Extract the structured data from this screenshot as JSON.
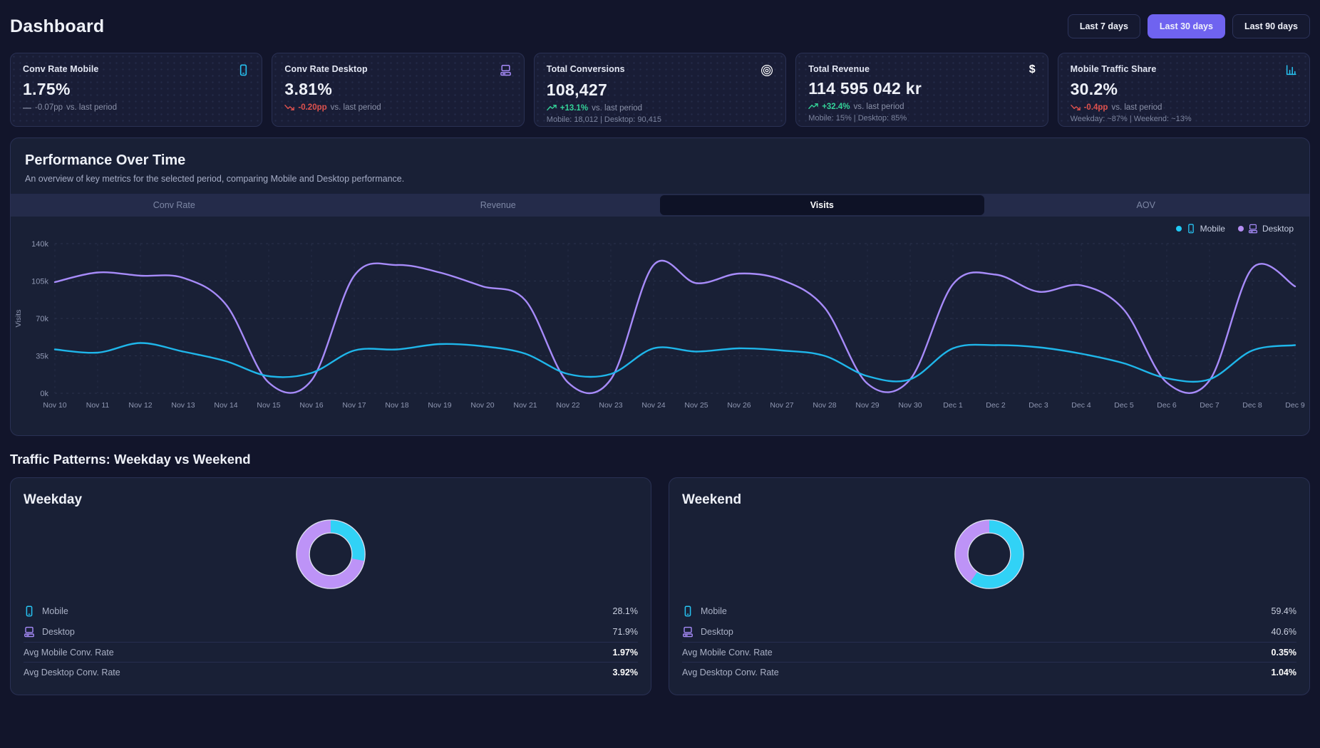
{
  "header": {
    "title": "Dashboard",
    "range_buttons": [
      {
        "label": "Last 7 days",
        "active": false
      },
      {
        "label": "Last 30 days",
        "active": true
      },
      {
        "label": "Last 90 days",
        "active": false
      }
    ]
  },
  "kpis": [
    {
      "label": "Conv Rate Mobile",
      "value": "1.75%",
      "change": "-0.07pp",
      "suffix": "vs. last period",
      "detail": ""
    },
    {
      "label": "Conv Rate Desktop",
      "value": "3.81%",
      "change": "-0.20pp",
      "suffix": "vs. last period",
      "detail": ""
    },
    {
      "label": "Total Conversions",
      "value": "108,427",
      "change": "+13.1%",
      "suffix": "vs. last period",
      "detail": "Mobile: 18,012 | Desktop: 90,415"
    },
    {
      "label": "Total Revenue",
      "value": "114 595 042 kr",
      "change": "+32.4%",
      "suffix": "vs. last period",
      "detail": "Mobile: 15% | Desktop: 85%"
    },
    {
      "label": "Mobile Traffic Share",
      "value": "30.2%",
      "change": "-0.4pp",
      "suffix": "vs. last period",
      "detail": "Weekday: ~87% | Weekend: ~13%"
    }
  ],
  "performance": {
    "title": "Performance Over Time",
    "subtitle": "An overview of key metrics for the selected period, comparing Mobile and Desktop performance.",
    "tabs": [
      {
        "label": "Conv Rate",
        "active": false
      },
      {
        "label": "Revenue",
        "active": false
      },
      {
        "label": "Visits",
        "active": true
      },
      {
        "label": "AOV",
        "active": false
      }
    ],
    "legend": [
      {
        "label": "Mobile"
      },
      {
        "label": "Desktop"
      }
    ]
  },
  "traffic": {
    "title": "Traffic Patterns: Weekday vs Weekend",
    "cards": [
      {
        "title": "Weekday",
        "mobile_label": "Mobile",
        "mobile_value": "28.1%",
        "desktop_label": "Desktop",
        "desktop_value": "71.9%",
        "avg_mobile_label": "Avg Mobile Conv. Rate",
        "avg_mobile_value": "1.97%",
        "avg_desktop_label": "Avg Desktop Conv. Rate",
        "avg_desktop_value": "3.92%"
      },
      {
        "title": "Weekend",
        "mobile_label": "Mobile",
        "mobile_value": "59.4%",
        "desktop_label": "Desktop",
        "desktop_value": "40.6%",
        "avg_mobile_label": "Avg Mobile Conv. Rate",
        "avg_mobile_value": "0.35%",
        "avg_desktop_label": "Avg Desktop Conv. Rate",
        "avg_desktop_value": "1.04%"
      }
    ]
  },
  "colors": {
    "mobile_line": "#1fb6ea",
    "desktop_line": "#a78bfa",
    "mobile_donut": "#31d2f6",
    "desktop_donut": "#bd93f7",
    "accent": "#6f63f0",
    "positive": "#34d399",
    "negative": "#e0524e"
  },
  "chart_data": [
    {
      "type": "line",
      "title": "Performance Over Time",
      "ylabel": "Visits",
      "x": [
        "Nov 10",
        "Nov 11",
        "Nov 12",
        "Nov 13",
        "Nov 14",
        "Nov 15",
        "Nov 16",
        "Nov 17",
        "Nov 18",
        "Nov 19",
        "Nov 20",
        "Nov 21",
        "Nov 22",
        "Nov 23",
        "Nov 24",
        "Nov 25",
        "Nov 26",
        "Nov 27",
        "Nov 28",
        "Nov 29",
        "Nov 30",
        "Dec 1",
        "Dec 2",
        "Dec 3",
        "Dec 4",
        "Dec 5",
        "Dec 6",
        "Dec 7",
        "Dec 8",
        "Dec 9"
      ],
      "yticks": [
        0,
        35000,
        70000,
        105000,
        140000
      ],
      "ytick_labels": [
        "0k",
        "35k",
        "70k",
        "105k",
        "140k"
      ],
      "ylim": [
        0,
        140000
      ],
      "grid": true,
      "legend_position": "top-right",
      "series": [
        {
          "name": "Mobile",
          "color": "#1fb6ea",
          "values": [
            41000,
            38000,
            47000,
            39000,
            30000,
            16000,
            19000,
            40000,
            41000,
            46000,
            44000,
            37000,
            18000,
            18000,
            42000,
            39000,
            42000,
            40000,
            35000,
            16000,
            13000,
            42000,
            45000,
            43000,
            37000,
            28000,
            14000,
            13000,
            40000,
            45000
          ]
        },
        {
          "name": "Desktop",
          "color": "#a78bfa",
          "values": [
            104000,
            113000,
            110000,
            108000,
            83000,
            10000,
            12000,
            110000,
            120000,
            113000,
            100000,
            87000,
            10000,
            13000,
            120000,
            103000,
            112000,
            106000,
            80000,
            9000,
            13000,
            102000,
            111000,
            95000,
            101000,
            78000,
            10000,
            12000,
            117000,
            100000
          ]
        }
      ]
    },
    {
      "type": "pie",
      "title": "Weekday",
      "labels": [
        "Mobile",
        "Desktop"
      ],
      "values": [
        28.1,
        71.9
      ],
      "colors": [
        "#31d2f6",
        "#bd93f7"
      ]
    },
    {
      "type": "pie",
      "title": "Weekend",
      "labels": [
        "Mobile",
        "Desktop"
      ],
      "values": [
        59.4,
        40.6
      ],
      "colors": [
        "#31d2f6",
        "#bd93f7"
      ]
    }
  ]
}
